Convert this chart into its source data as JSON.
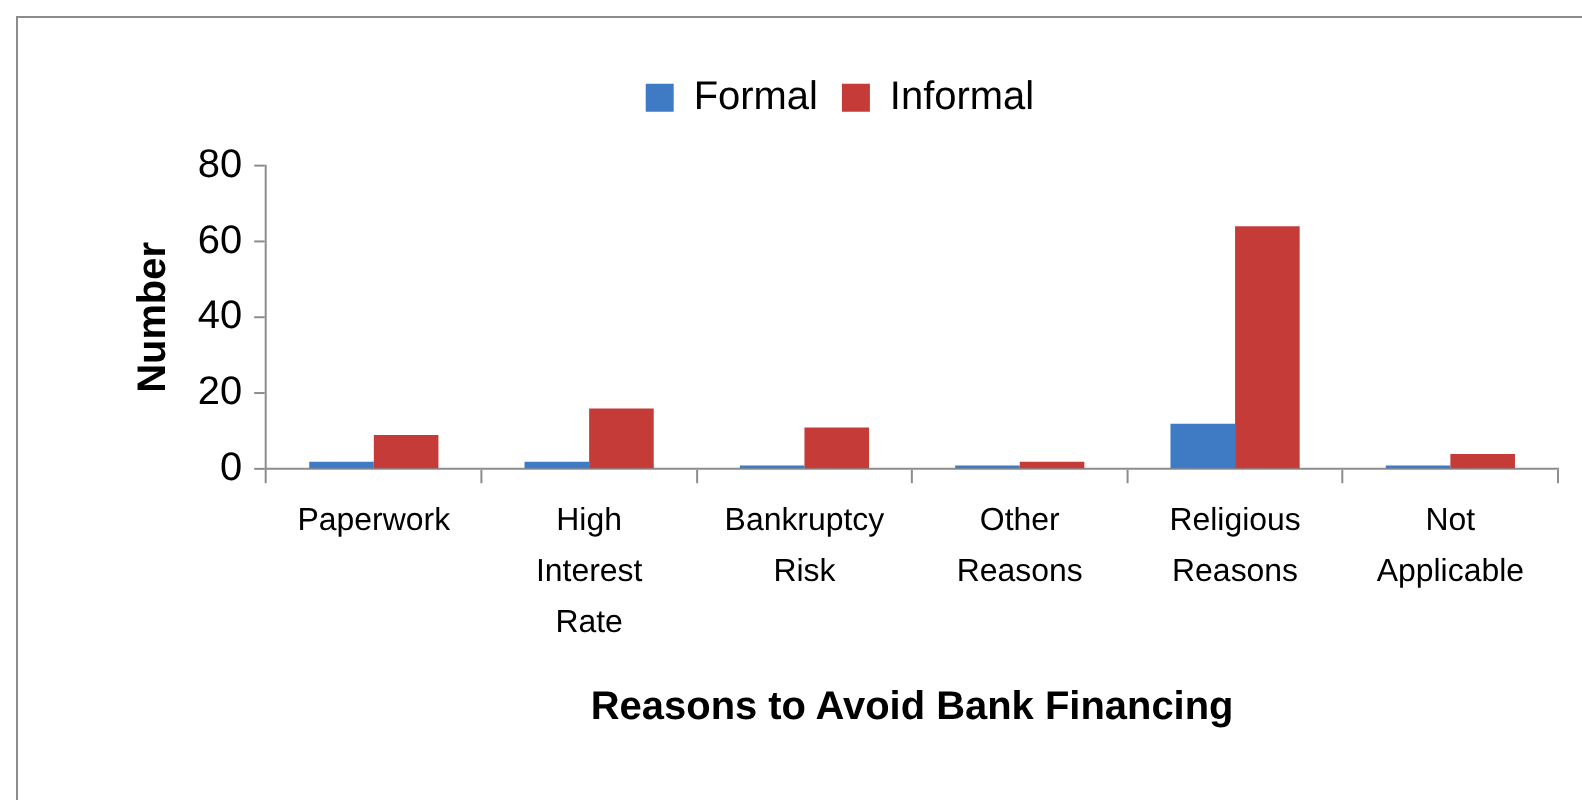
{
  "chart_data": {
    "type": "bar",
    "xlabel": "Reasons to Avoid Bank Financing",
    "ylabel": "Number",
    "categories": [
      "Paperwork",
      "High Interest Rate",
      "Bankruptcy Risk",
      "Other Reasons",
      "Religious Reasons",
      "Not Applicable"
    ],
    "series": [
      {
        "name": "Formal",
        "color": "#3e7bc4",
        "values": [
          2,
          2,
          1,
          1,
          12,
          1
        ]
      },
      {
        "name": "Informal",
        "color": "#c43b38",
        "values": [
          9,
          16,
          11,
          2,
          64,
          4
        ]
      }
    ],
    "ylim": [
      0,
      80
    ],
    "yticks": [
      0,
      20,
      40,
      60,
      80
    ],
    "grid": false,
    "legend": "top"
  }
}
